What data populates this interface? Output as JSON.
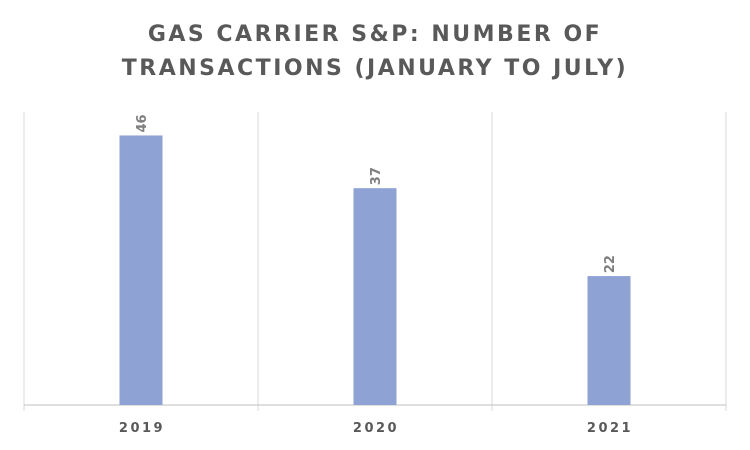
{
  "chart_data": {
    "type": "bar",
    "title": "GAS CARRIER S&P: NUMBER OF TRANSACTIONS (JANUARY TO JULY)",
    "title_lines": [
      "GAS CARRIER S&P: NUMBER OF",
      "TRANSACTIONS (JANUARY TO JULY)"
    ],
    "categories": [
      "2019",
      "2020",
      "2021"
    ],
    "values": [
      46,
      37,
      22
    ],
    "data_labels": [
      "46",
      "37",
      "22"
    ],
    "xlabel": "",
    "ylabel": "",
    "ylim": [
      0,
      50
    ],
    "grid": "vertical",
    "legend": "none",
    "colors": {
      "bar": "#8fa2d4",
      "grid": "#d9d9d9",
      "axis": "#bfbfbf",
      "text": "#595959",
      "label": "#7f7f7f"
    }
  }
}
